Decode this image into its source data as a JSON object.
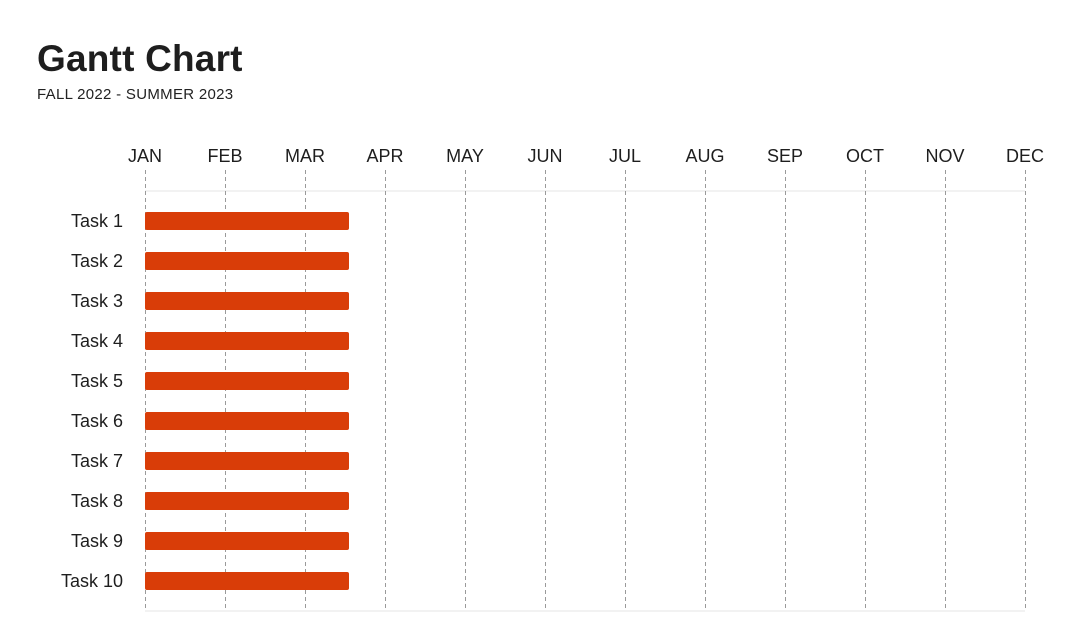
{
  "header": {
    "title": "Gantt Chart",
    "subtitle": "FALL 2022 - SUMMER 2023"
  },
  "chart_data": {
    "type": "gantt",
    "title": "Gantt Chart",
    "subtitle": "FALL 2022 - SUMMER 2023",
    "months": [
      "JAN",
      "FEB",
      "MAR",
      "APR",
      "MAY",
      "JUN",
      "JUL",
      "AUG",
      "SEP",
      "OCT",
      "NOV",
      "DEC"
    ],
    "tasks": [
      {
        "name": "Task 1",
        "start": "JAN",
        "end": "mid-MAR",
        "start_month": 0,
        "end_month": 2.55
      },
      {
        "name": "Task 2",
        "start": "JAN",
        "end": "mid-MAR",
        "start_month": 0,
        "end_month": 2.55
      },
      {
        "name": "Task 3",
        "start": "JAN",
        "end": "mid-MAR",
        "start_month": 0,
        "end_month": 2.55
      },
      {
        "name": "Task 4",
        "start": "JAN",
        "end": "mid-MAR",
        "start_month": 0,
        "end_month": 2.55
      },
      {
        "name": "Task 5",
        "start": "JAN",
        "end": "mid-MAR",
        "start_month": 0,
        "end_month": 2.55
      },
      {
        "name": "Task 6",
        "start": "JAN",
        "end": "mid-MAR",
        "start_month": 0,
        "end_month": 2.55
      },
      {
        "name": "Task 7",
        "start": "JAN",
        "end": "mid-MAR",
        "start_month": 0,
        "end_month": 2.55
      },
      {
        "name": "Task 8",
        "start": "JAN",
        "end": "mid-MAR",
        "start_month": 0,
        "end_month": 2.55
      },
      {
        "name": "Task 9",
        "start": "JAN",
        "end": "mid-MAR",
        "start_month": 0,
        "end_month": 2.55
      },
      {
        "name": "Task 10",
        "start": "JAN",
        "end": "mid-MAR",
        "start_month": 0,
        "end_month": 2.55
      }
    ],
    "bar_color": "#d93d08",
    "grid": "dashed vertical lines at each month"
  }
}
